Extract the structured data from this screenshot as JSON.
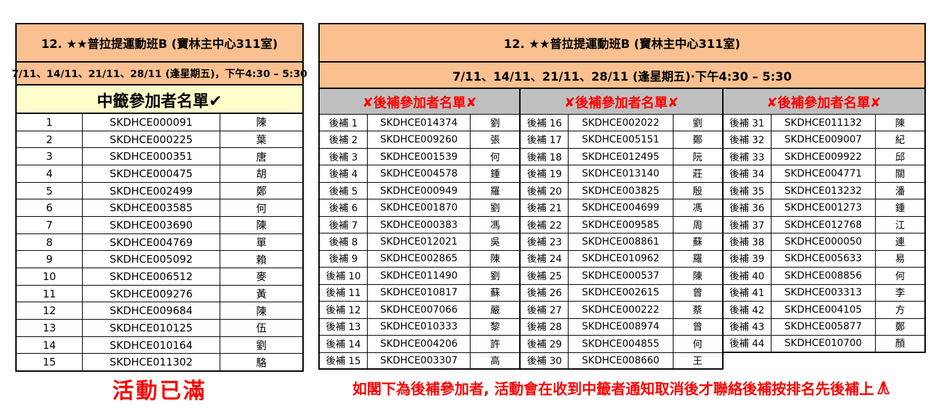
{
  "colors": {
    "header_orange": "#FAC090",
    "header_yellow": "#FFFFCC",
    "header_gray": "#BFBFBF",
    "accent_red": "#FF0000"
  },
  "icons": {
    "winner_check": "check-mark-icon",
    "waitlist_cross": "cross-mark-icon",
    "footer": "praying-hands-icon"
  },
  "winner_table": {
    "title": "12. ★★普拉提運動班B (寶林主中心311室)",
    "schedule": "7/11、14/11、21/11、28/11 (逢星期五)，下午4:30 – 5:30",
    "list_header": "中籤參加者名單✔",
    "rows": [
      [
        "1",
        "SKDHCE000091",
        "陳"
      ],
      [
        "2",
        "SKDHCE000225",
        "葉"
      ],
      [
        "3",
        "SKDHCE000351",
        "唐"
      ],
      [
        "4",
        "SKDHCE000475",
        "胡"
      ],
      [
        "5",
        "SKDHCE002499",
        "鄭"
      ],
      [
        "6",
        "SKDHCE003585",
        "何"
      ],
      [
        "7",
        "SKDHCE003690",
        "陳"
      ],
      [
        "8",
        "SKDHCE004769",
        "單"
      ],
      [
        "9",
        "SKDHCE005092",
        "賴"
      ],
      [
        "10",
        "SKDHCE006512",
        "麥"
      ],
      [
        "11",
        "SKDHCE009276",
        "黃"
      ],
      [
        "12",
        "SKDHCE009684",
        "陳"
      ],
      [
        "13",
        "SKDHCE010125",
        "伍"
      ],
      [
        "14",
        "SKDHCE010164",
        "劉"
      ],
      [
        "15",
        "SKDHCE011302",
        "駱"
      ]
    ],
    "footer": "活動已滿"
  },
  "waitlist_table": {
    "title": "12. ★★普拉提運動班B (寶林主中心311室)",
    "schedule": "7/11、14/11、21/11、28/11 (逢星期五)·下午4:30 – 5:30",
    "column_header": "✘後補參加者名單✘",
    "columns": [
      {
        "rows": [
          [
            "後補 1",
            "SKDHCE014374",
            "劉"
          ],
          [
            "後補 2",
            "SKDHCE009260",
            "張"
          ],
          [
            "後補 3",
            "SKDHCE001539",
            "何"
          ],
          [
            "後補 4",
            "SKDHCE004578",
            "鍾"
          ],
          [
            "後補 5",
            "SKDHCE000949",
            "羅"
          ],
          [
            "後補 6",
            "SKDHCE001870",
            "劉"
          ],
          [
            "後補 7",
            "SKDHCE000383",
            "馮"
          ],
          [
            "後補 8",
            "SKDHCE012021",
            "吳"
          ],
          [
            "後補 9",
            "SKDHCE002865",
            "陳"
          ],
          [
            "後補 10",
            "SKDHCE011490",
            "劉"
          ],
          [
            "後補 11",
            "SKDHCE010817",
            "蘇"
          ],
          [
            "後補 12",
            "SKDHCE007066",
            "嚴"
          ],
          [
            "後補 13",
            "SKDHCE010333",
            "黎"
          ],
          [
            "後補 14",
            "SKDHCE004206",
            "許"
          ],
          [
            "後補 15",
            "SKDHCE003307",
            "高"
          ]
        ]
      },
      {
        "rows": [
          [
            "後補 16",
            "SKDHCE002022",
            "劉"
          ],
          [
            "後補 17",
            "SKDHCE005151",
            "鄭"
          ],
          [
            "後補 18",
            "SKDHCE012495",
            "阮"
          ],
          [
            "後補 19",
            "SKDHCE013140",
            "莊"
          ],
          [
            "後補 20",
            "SKDHCE003825",
            "殷"
          ],
          [
            "後補 21",
            "SKDHCE004699",
            "馮"
          ],
          [
            "後補 22",
            "SKDHCE009585",
            "周"
          ],
          [
            "後補 23",
            "SKDHCE008861",
            "蘇"
          ],
          [
            "後補 24",
            "SKDHCE010962",
            "羅"
          ],
          [
            "後補 25",
            "SKDHCE000537",
            "陳"
          ],
          [
            "後補 26",
            "SKDHCE002615",
            "曾"
          ],
          [
            "後補 27",
            "SKDHCE000222",
            "蔡"
          ],
          [
            "後補 28",
            "SKDHCE008974",
            "曾"
          ],
          [
            "後補 29",
            "SKDHCE004855",
            "何"
          ],
          [
            "後補 30",
            "SKDHCE008660",
            "王"
          ]
        ]
      },
      {
        "rows": [
          [
            "後補 31",
            "SKDHCE011132",
            "陳"
          ],
          [
            "後補 32",
            "SKDHCE009007",
            "紀"
          ],
          [
            "後補 33",
            "SKDHCE009922",
            "邱"
          ],
          [
            "後補 34",
            "SKDHCE004771",
            "關"
          ],
          [
            "後補 35",
            "SKDHCE013232",
            "潘"
          ],
          [
            "後補 36",
            "SKDHCE001273",
            "鍾"
          ],
          [
            "後補 37",
            "SKDHCE012768",
            "江"
          ],
          [
            "後補 38",
            "SKDHCE000050",
            "連"
          ],
          [
            "後補 39",
            "SKDHCE005633",
            "易"
          ],
          [
            "後補 40",
            "SKDHCE008856",
            "何"
          ],
          [
            "後補 41",
            "SKDHCE003313",
            "李"
          ],
          [
            "後補 42",
            "SKDHCE004105",
            "方"
          ],
          [
            "後補 43",
            "SKDHCE005877",
            "鄭"
          ],
          [
            "後補 44",
            "SKDHCE010700",
            "顏"
          ]
        ]
      }
    ],
    "footer": "如閣下為後補參加者, 活動會在收到中籤者通知取消後才聯絡後補按排名先後補上"
  }
}
